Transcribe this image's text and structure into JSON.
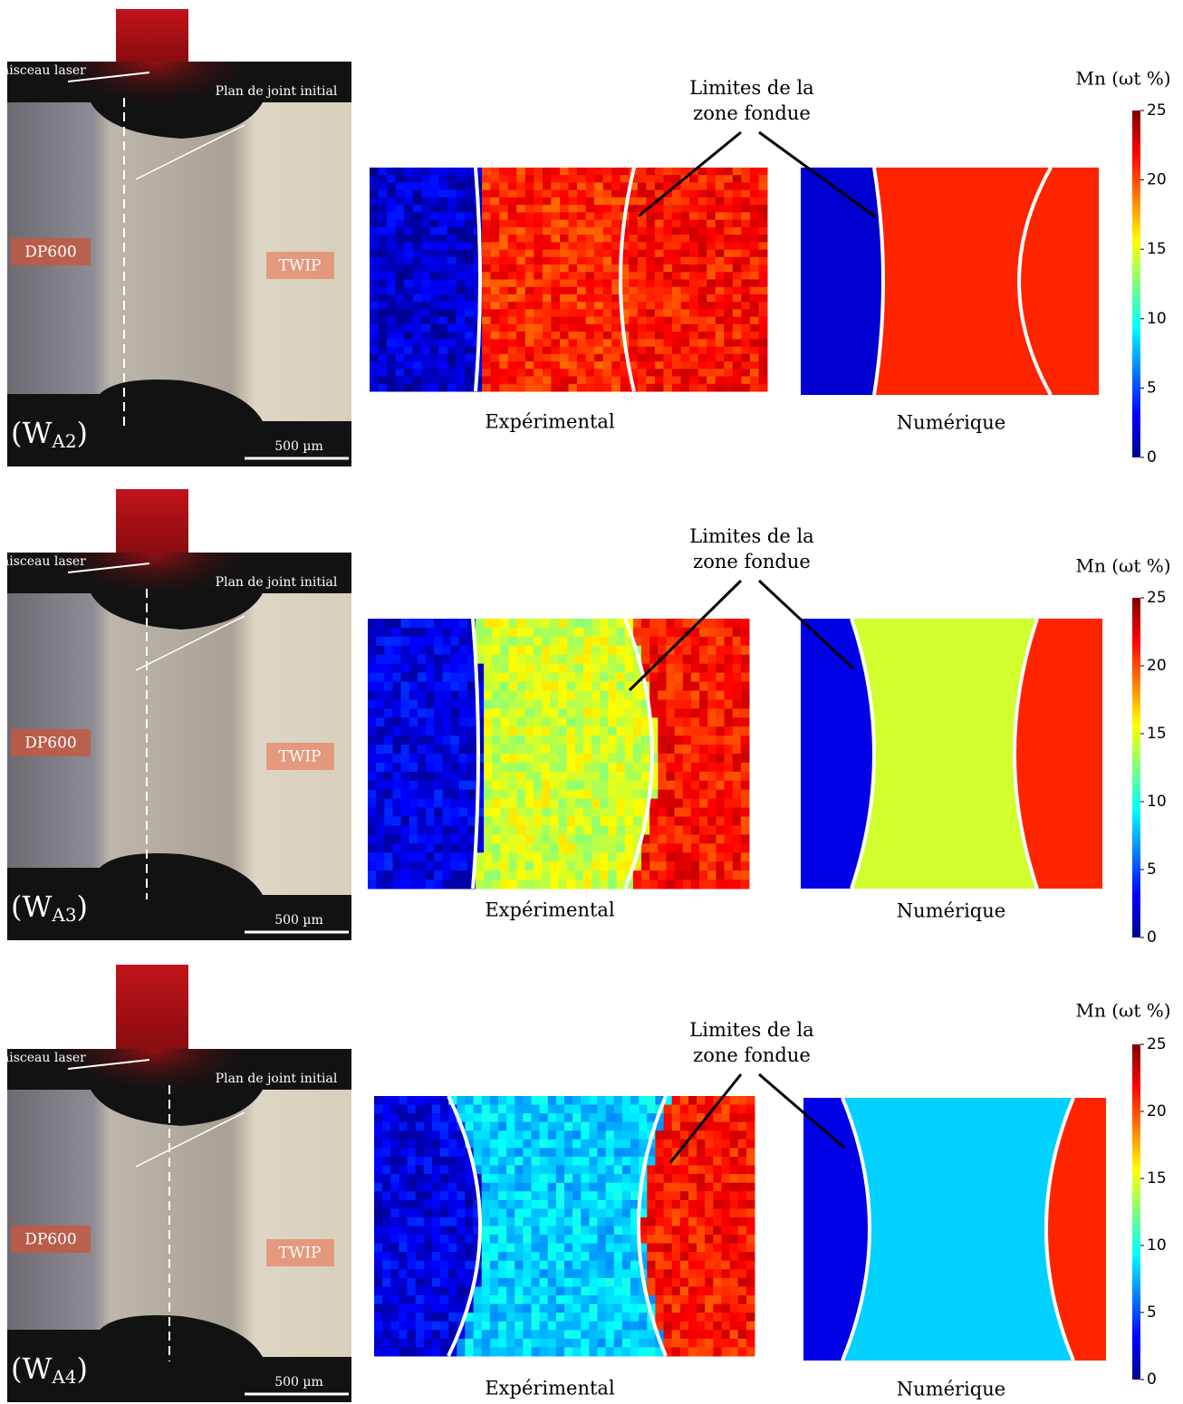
{
  "rows": [
    {
      "micrograph": {
        "beam": "Faisceau laser",
        "joint": "Plan de joint initial",
        "left_steel": "DP600",
        "right_steel": "TWIP",
        "weld_label": {
          "open": "(W",
          "sub": "A2",
          "close": ")"
        },
        "scale_bar": "500 µm"
      },
      "annotation": "Limites de la zone fondue",
      "experimental": "Expérimental",
      "numerical": "Numérique",
      "colorbar": {
        "title": "Mn (ωt %)",
        "lim": [
          0,
          25
        ],
        "ticks": [
          0,
          5,
          10,
          15,
          20,
          25
        ]
      }
    },
    {
      "micrograph": {
        "beam": "Faisceau laser",
        "joint": "Plan de joint initial",
        "left_steel": "DP600",
        "right_steel": "TWIP",
        "weld_label": {
          "open": "(W",
          "sub": "A3",
          "close": ")"
        },
        "scale_bar": "500 µm"
      },
      "annotation": "Limites de la zone fondue",
      "experimental": "Expérimental",
      "numerical": "Numérique",
      "colorbar": {
        "title": "Mn (ωt %)",
        "lim": [
          0,
          25
        ],
        "ticks": [
          0,
          5,
          10,
          15,
          20,
          25
        ]
      }
    },
    {
      "micrograph": {
        "beam": "Faisceau laser",
        "joint": "Plan de joint initial",
        "left_steel": "DP600",
        "right_steel": "TWIP",
        "weld_label": {
          "open": "(W",
          "sub": "A4",
          "close": ")"
        },
        "scale_bar": "500 µm"
      },
      "annotation": "Limites de la zone fondue",
      "experimental": "Expérimental",
      "numerical": "Numérique",
      "colorbar": {
        "title": "Mn (ωt %)",
        "lim": [
          0,
          25
        ],
        "ticks": [
          0,
          5,
          10,
          15,
          20,
          25
        ]
      }
    }
  ]
}
